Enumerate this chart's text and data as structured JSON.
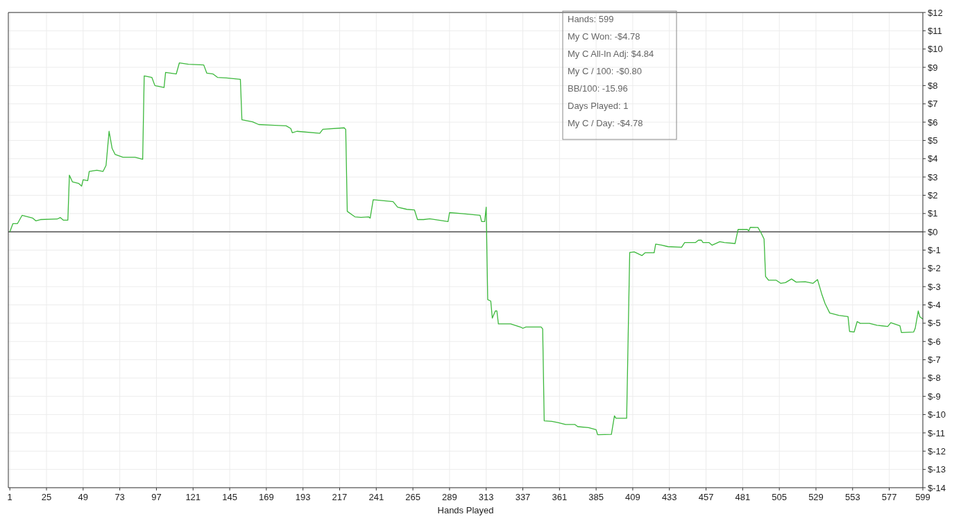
{
  "chart_data": {
    "type": "line",
    "xlabel": "Hands Played",
    "xlim": [
      0,
      599
    ],
    "ylim": [
      -14,
      12
    ],
    "xticks": [
      1,
      25,
      49,
      73,
      97,
      121,
      145,
      169,
      193,
      217,
      241,
      265,
      289,
      313,
      337,
      361,
      385,
      409,
      433,
      457,
      481,
      505,
      529,
      553,
      577,
      599
    ],
    "yticks": [
      {
        "value": 12,
        "label": "$12"
      },
      {
        "value": 11,
        "label": "$11"
      },
      {
        "value": 10,
        "label": "$10"
      },
      {
        "value": 9,
        "label": "$9"
      },
      {
        "value": 8,
        "label": "$8"
      },
      {
        "value": 7,
        "label": "$7"
      },
      {
        "value": 6,
        "label": "$6"
      },
      {
        "value": 5,
        "label": "$5"
      },
      {
        "value": 4,
        "label": "$4"
      },
      {
        "value": 3,
        "label": "$3"
      },
      {
        "value": 2,
        "label": "$2"
      },
      {
        "value": 1,
        "label": "$1"
      },
      {
        "value": 0,
        "label": "$0"
      },
      {
        "value": -1,
        "label": "$-1"
      },
      {
        "value": -2,
        "label": "$-2"
      },
      {
        "value": -3,
        "label": "$-3"
      },
      {
        "value": -4,
        "label": "$-4"
      },
      {
        "value": -5,
        "label": "$-5"
      },
      {
        "value": -6,
        "label": "$-6"
      },
      {
        "value": -7,
        "label": "$-7"
      },
      {
        "value": -8,
        "label": "$-8"
      },
      {
        "value": -9,
        "label": "$-9"
      },
      {
        "value": -10,
        "label": "$-10"
      },
      {
        "value": -11,
        "label": "$-11"
      },
      {
        "value": -12,
        "label": "$-12"
      },
      {
        "value": -13,
        "label": "$-13"
      },
      {
        "value": -14,
        "label": "$-14"
      }
    ],
    "grid": true,
    "ref_lines": [
      {
        "axis": "y",
        "value": 0,
        "color": "#000000"
      }
    ],
    "annotations": [
      "Hands: 599",
      "My C Won: -$4.78",
      "My C All-In Adj: $4.84",
      "My C / 100: -$0.80",
      "BB/100: -15.96",
      "Days Played: 1",
      "My C / Day: -$4.78"
    ],
    "series": [
      {
        "color": "#3cb83c",
        "x": [
          1,
          3,
          6,
          9,
          16,
          18,
          21,
          32,
          34,
          36,
          39,
          40,
          42,
          46,
          48,
          49,
          52,
          53,
          58,
          62,
          64,
          66,
          68,
          70,
          75,
          83,
          88,
          89,
          94,
          96,
          102,
          103,
          110,
          112,
          118,
          128,
          130,
          134,
          137,
          143,
          152,
          153,
          160,
          164,
          172,
          182,
          185,
          186,
          189,
          204,
          206,
          220,
          221,
          222,
          227,
          231,
          236,
          237,
          239,
          252,
          255,
          261,
          266,
          268,
          272,
          276,
          288,
          289,
          297,
          309,
          310,
          312,
          313,
          314,
          316,
          317,
          319,
          320,
          321,
          329,
          336,
          337,
          339,
          349,
          350,
          351,
          356,
          360,
          365,
          371,
          373,
          380,
          385,
          386,
          395,
          397,
          398,
          405,
          407,
          410,
          415,
          417,
          423,
          424,
          428,
          432,
          441,
          443,
          450,
          452,
          454,
          455,
          459,
          461,
          466,
          469,
          476,
          478,
          484,
          485,
          486,
          491,
          493,
          495,
          496,
          498,
          503,
          506,
          509,
          513,
          516,
          522,
          527,
          530,
          533,
          535,
          538,
          544,
          550,
          551,
          554,
          556,
          558,
          564,
          569,
          576,
          578,
          584,
          585,
          593,
          594,
          596,
          597,
          599
        ],
        "values": [
          0,
          0.45,
          0.45,
          0.9,
          0.75,
          0.6,
          0.67,
          0.7,
          0.78,
          0.64,
          0.64,
          3.1,
          2.73,
          2.65,
          2.5,
          2.85,
          2.8,
          3.3,
          3.37,
          3.3,
          3.63,
          5.5,
          4.56,
          4.23,
          4.08,
          4.08,
          3.97,
          8.53,
          8.45,
          8.0,
          7.9,
          8.72,
          8.64,
          9.24,
          9.17,
          9.13,
          8.68,
          8.64,
          8.45,
          8.42,
          8.34,
          6.13,
          6.02,
          5.87,
          5.84,
          5.8,
          5.65,
          5.42,
          5.5,
          5.39,
          5.61,
          5.69,
          5.6,
          1.12,
          0.82,
          0.79,
          0.82,
          0.75,
          1.76,
          1.65,
          1.35,
          1.23,
          1.2,
          0.67,
          0.67,
          0.71,
          0.56,
          1.05,
          1.0,
          0.9,
          0.56,
          0.56,
          1.35,
          -3.71,
          -3.79,
          -4.72,
          -4.33,
          -4.33,
          -5.04,
          -5.04,
          -5.23,
          -5.28,
          -5.21,
          -5.21,
          -5.31,
          -10.34,
          -10.37,
          -10.44,
          -10.54,
          -10.54,
          -10.66,
          -10.71,
          -10.83,
          -11.1,
          -11.08,
          -10.07,
          -10.2,
          -10.2,
          -1.13,
          -1.1,
          -1.3,
          -1.15,
          -1.15,
          -0.67,
          -0.73,
          -0.81,
          -0.84,
          -0.59,
          -0.59,
          -0.46,
          -0.46,
          -0.59,
          -0.59,
          -0.73,
          -0.54,
          -0.59,
          -0.64,
          0.13,
          0.13,
          0.05,
          0.25,
          0.24,
          -0.05,
          -0.39,
          -2.45,
          -2.65,
          -2.65,
          -2.82,
          -2.78,
          -2.58,
          -2.75,
          -2.73,
          -2.82,
          -2.61,
          -3.46,
          -3.93,
          -4.44,
          -4.57,
          -4.64,
          -5.45,
          -5.48,
          -4.91,
          -5.01,
          -5.01,
          -5.11,
          -5.18,
          -4.97,
          -5.14,
          -5.51,
          -5.48,
          -5.28,
          -4.33,
          -4.64,
          -4.78
        ]
      }
    ]
  }
}
